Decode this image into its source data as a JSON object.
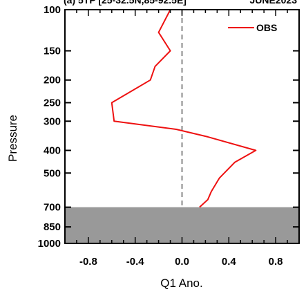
{
  "chart_data": {
    "type": "line",
    "title_left": "(a) 5TP [25-32.5N,85-92.5E]",
    "title_right": "JUNE2023",
    "xlabel": "Q1 Ano.",
    "ylabel": "Pressure",
    "xlim": [
      -1.0,
      1.0
    ],
    "ylim": [
      1000,
      100
    ],
    "y_scale": "log",
    "x_ticks": [
      -0.8,
      -0.4,
      0.0,
      0.4,
      0.8
    ],
    "x_tick_labels": [
      "-0.8",
      "-0.4",
      "0.0",
      "0.4",
      "0.8"
    ],
    "y_ticks": [
      100,
      150,
      200,
      250,
      300,
      400,
      500,
      700,
      850,
      1000
    ],
    "y_tick_labels": [
      "100",
      "150",
      "200",
      "250",
      "300",
      "400",
      "500",
      "700",
      "850",
      "1000"
    ],
    "zero_line": {
      "x": 0.0,
      "style": "dashed",
      "color": "#555555"
    },
    "masked_region": {
      "p_from": 700,
      "p_to": 1000,
      "color": "#999999"
    },
    "legend": {
      "placement": "top-right",
      "entries": [
        "OBS"
      ]
    },
    "series": [
      {
        "name": "OBS",
        "color": "#ee1111",
        "points": [
          {
            "x": 0.15,
            "p": 700
          },
          {
            "x": 0.22,
            "p": 650
          },
          {
            "x": 0.25,
            "p": 600
          },
          {
            "x": 0.32,
            "p": 525
          },
          {
            "x": 0.45,
            "p": 450
          },
          {
            "x": 0.63,
            "p": 400
          },
          {
            "x": 0.22,
            "p": 350
          },
          {
            "x": -0.05,
            "p": 325
          },
          {
            "x": -0.58,
            "p": 300
          },
          {
            "x": -0.6,
            "p": 250
          },
          {
            "x": -0.27,
            "p": 200
          },
          {
            "x": -0.23,
            "p": 175
          },
          {
            "x": -0.1,
            "p": 150
          },
          {
            "x": -0.2,
            "p": 125
          },
          {
            "x": -0.1,
            "p": 100
          }
        ]
      }
    ]
  }
}
